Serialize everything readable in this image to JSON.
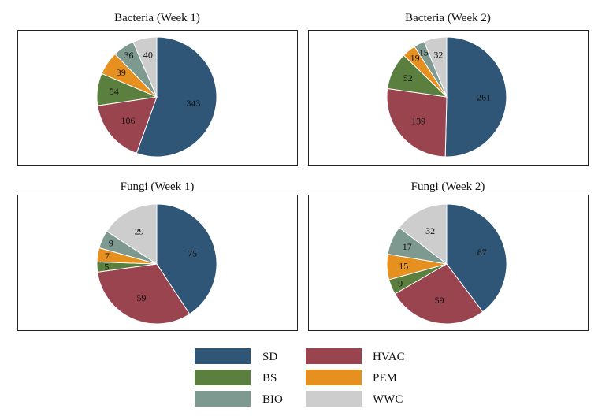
{
  "chart_data": [
    {
      "type": "pie",
      "title": "Bacteria (Week 1)",
      "categories": [
        "SD",
        "HVAC",
        "BS",
        "PEM",
        "BIO",
        "WWC"
      ],
      "values": [
        343,
        106,
        54,
        39,
        36,
        40
      ]
    },
    {
      "type": "pie",
      "title": "Bacteria (Week 2)",
      "categories": [
        "SD",
        "HVAC",
        "BS",
        "PEM",
        "BIO",
        "WWC"
      ],
      "values": [
        261,
        139,
        52,
        19,
        15,
        32
      ]
    },
    {
      "type": "pie",
      "title": "Fungi (Week 1)",
      "categories": [
        "SD",
        "HVAC",
        "BS",
        "PEM",
        "BIO",
        "WWC"
      ],
      "values": [
        75,
        59,
        5,
        7,
        9,
        29
      ]
    },
    {
      "type": "pie",
      "title": "Fungi (Week 2)",
      "categories": [
        "SD",
        "HVAC",
        "BS",
        "PEM",
        "BIO",
        "WWC"
      ],
      "values": [
        87,
        59,
        9,
        15,
        17,
        32
      ]
    }
  ],
  "legend": {
    "placement": "bottom",
    "items": [
      {
        "label": "SD",
        "color": "#2f5577"
      },
      {
        "label": "HVAC",
        "color": "#9a4450"
      },
      {
        "label": "BS",
        "color": "#5a7f3e"
      },
      {
        "label": "PEM",
        "color": "#e5901f"
      },
      {
        "label": "BIO",
        "color": "#7e9a90"
      },
      {
        "label": "WWC",
        "color": "#cdcdcd"
      }
    ]
  }
}
